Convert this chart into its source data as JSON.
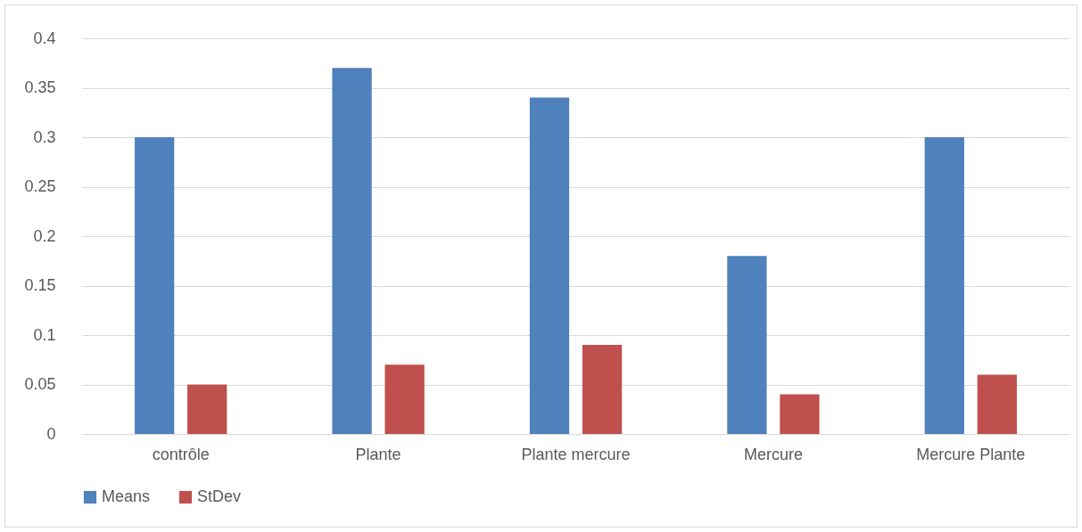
{
  "chart_data": {
    "type": "bar",
    "categories": [
      "contrôle",
      "Plante",
      "Plante mercure",
      "Mercure",
      "Mercure Plante"
    ],
    "series": [
      {
        "name": "Means",
        "color": "#4f81bd",
        "values": [
          0.3,
          0.37,
          0.34,
          0.18,
          0.3
        ]
      },
      {
        "name": "StDev",
        "color": "#c0504d",
        "values": [
          0.05,
          0.07,
          0.09,
          0.04,
          0.06
        ]
      }
    ],
    "ylim": [
      0,
      0.4
    ],
    "yticks": [
      0,
      0.05,
      0.1,
      0.15,
      0.2,
      0.25,
      0.3,
      0.35,
      0.4
    ],
    "grid": "y",
    "legend": "bottom"
  }
}
